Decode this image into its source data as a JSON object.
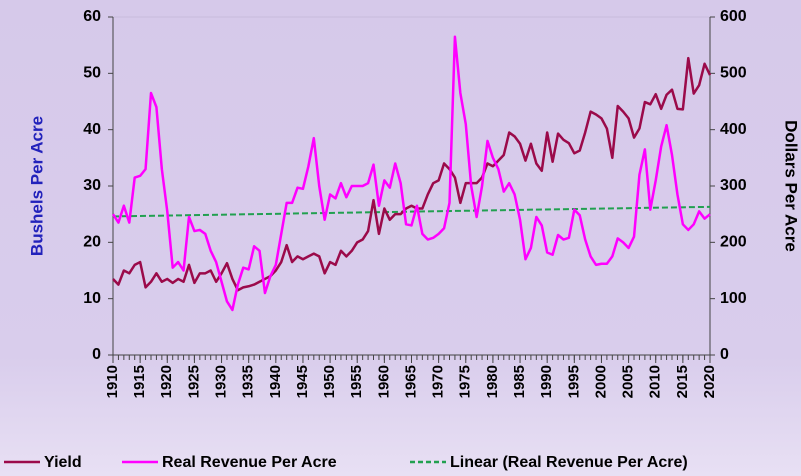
{
  "chart_data": {
    "type": "line",
    "x": [
      1910,
      1911,
      1912,
      1913,
      1914,
      1915,
      1916,
      1917,
      1918,
      1919,
      1920,
      1921,
      1922,
      1923,
      1924,
      1925,
      1926,
      1927,
      1928,
      1929,
      1930,
      1931,
      1932,
      1933,
      1934,
      1935,
      1936,
      1937,
      1938,
      1939,
      1940,
      1941,
      1942,
      1943,
      1944,
      1945,
      1946,
      1947,
      1948,
      1949,
      1950,
      1951,
      1952,
      1953,
      1954,
      1955,
      1956,
      1957,
      1958,
      1959,
      1960,
      1961,
      1962,
      1963,
      1964,
      1965,
      1966,
      1967,
      1968,
      1969,
      1970,
      1971,
      1972,
      1973,
      1974,
      1975,
      1976,
      1977,
      1978,
      1979,
      1980,
      1981,
      1982,
      1983,
      1984,
      1985,
      1986,
      1987,
      1988,
      1989,
      1990,
      1991,
      1992,
      1993,
      1994,
      1995,
      1996,
      1997,
      1998,
      1999,
      2000,
      2001,
      2002,
      2003,
      2004,
      2005,
      2006,
      2007,
      2008,
      2009,
      2010,
      2011,
      2012,
      2013,
      2014,
      2015,
      2016,
      2017,
      2018,
      2019,
      2020
    ],
    "xlim": [
      1910,
      2020
    ],
    "xticks": [
      1910,
      1915,
      1920,
      1925,
      1930,
      1935,
      1940,
      1945,
      1950,
      1955,
      1960,
      1965,
      1970,
      1975,
      1980,
      1985,
      1990,
      1995,
      2000,
      2005,
      2010,
      2015,
      2020
    ],
    "ylabel": "Bushels Per Acre",
    "ylim": [
      0,
      60
    ],
    "yticks": [
      0,
      10,
      20,
      30,
      40,
      50,
      60
    ],
    "y2label": "Dollars Per Acre",
    "y2lim": [
      0,
      600
    ],
    "y2ticks": [
      0,
      100,
      200,
      300,
      400,
      500,
      600
    ],
    "series": [
      {
        "name": "Yield",
        "color": "#9b0a4a",
        "values": [
          13.5,
          12.5,
          15,
          14.5,
          16,
          16.5,
          12,
          13,
          14.5,
          13,
          13.5,
          12.8,
          13.5,
          13,
          16,
          12.8,
          14.5,
          14.5,
          15,
          13,
          14.5,
          16.3,
          13.5,
          11.5,
          12,
          12.2,
          12.5,
          13,
          13.5,
          14,
          15,
          16.5,
          19.5,
          16.5,
          17.5,
          17,
          17.5,
          18,
          17.5,
          14.5,
          16.5,
          16,
          18.5,
          17.5,
          18.5,
          20,
          20.5,
          22,
          27.5,
          21.5,
          26,
          24,
          25,
          25,
          26,
          26.5,
          26,
          26,
          28.5,
          30.5,
          31,
          34,
          33,
          31.5,
          27,
          30.5,
          30.5,
          30.5,
          31.5,
          34,
          33.5,
          34.5,
          35.5,
          39.5,
          38.8,
          37.5,
          34.5,
          37.5,
          34,
          32.7,
          39.5,
          34.3,
          39.3,
          38.2,
          37.6,
          35.8,
          36.3,
          39.5,
          43.2,
          42.7,
          42,
          40.2,
          35,
          44.2,
          43.2,
          42,
          38.6,
          40.2,
          44.9,
          44.5,
          46.3,
          43.7,
          46.2,
          47.1,
          43.7,
          43.6,
          52.7,
          46.4,
          47.9,
          51.7,
          49.7
        ]
      },
      {
        "name": "Real Revenue Per Acre",
        "color": "#ff00ff",
        "axis": "y2",
        "values": [
          250,
          235,
          265,
          235,
          315,
          318,
          330,
          465,
          440,
          330,
          255,
          155,
          165,
          150,
          245,
          220,
          222,
          215,
          185,
          165,
          130,
          95,
          80,
          125,
          155,
          152,
          193,
          185,
          110,
          140,
          160,
          215,
          270,
          270,
          297,
          295,
          335,
          385,
          300,
          240,
          285,
          278,
          305,
          280,
          300,
          300,
          300,
          305,
          338,
          265,
          310,
          297,
          340,
          305,
          232,
          230,
          265,
          215,
          205,
          208,
          215,
          225,
          270,
          565,
          465,
          410,
          300,
          245,
          300,
          380,
          350,
          330,
          290,
          305,
          285,
          240,
          170,
          190,
          245,
          230,
          182,
          178,
          213,
          205,
          208,
          258,
          248,
          205,
          175,
          160,
          162,
          162,
          175,
          207,
          200,
          190,
          210,
          320,
          365,
          258,
          310,
          370,
          408,
          355,
          285,
          232,
          222,
          232,
          255,
          242,
          250
        ]
      }
    ],
    "trendline": {
      "name": "Linear (Real Revenue Per Acre)",
      "color": "#22a050",
      "axis": "y2",
      "x": [
        1910,
        2020
      ],
      "values": [
        246,
        263
      ]
    }
  }
}
